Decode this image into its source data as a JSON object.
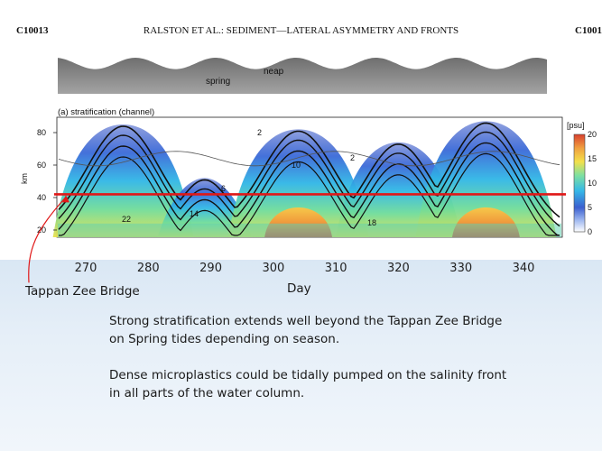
{
  "header": {
    "left": "C10013",
    "center": "RALSTON ET AL.: SEDIMENT—LATERAL ASYMMETRY AND FRONTS",
    "right": "C1001"
  },
  "tide_panel": {
    "spring_label": "spring",
    "neap_label": "neap",
    "fill_color": "#8a8a8a"
  },
  "chart_data": {
    "type": "heatmap",
    "title": "(a) stratification (channel)",
    "xlabel": "Day",
    "ylabel": "km",
    "xlim": [
      264,
      346
    ],
    "ylim": [
      10,
      90
    ],
    "x_ticks": [
      270,
      280,
      290,
      300,
      310,
      320,
      330,
      340
    ],
    "y_ticks": [
      20,
      40,
      60,
      80
    ],
    "colorbar": {
      "unit": "[psu]",
      "ticks": [
        20,
        15,
        10,
        5,
        0
      ],
      "range": [
        0,
        20
      ],
      "colors": [
        "#ffffff",
        "#3b5fcf",
        "#35b8e8",
        "#7fe0a0",
        "#f3e04a",
        "#f0a040",
        "#d9402e"
      ]
    },
    "contour_labels": [
      "2",
      "6",
      "10",
      "14",
      "18",
      "22",
      "2"
    ],
    "stratification_peaks": [
      {
        "day": 276,
        "extent_km": 85
      },
      {
        "day": 289,
        "extent_km": 52
      },
      {
        "day": 304,
        "extent_km": 82
      },
      {
        "day": 320,
        "extent_km": 74
      },
      {
        "day": 334,
        "extent_km": 87
      }
    ],
    "annotation": {
      "label": "Tappan Zee Bridge",
      "y_km": 42,
      "color": "#e01818"
    }
  },
  "captions": {
    "line1a": "Strong stratification extends well beyond the Tappan Zee Bridge",
    "line1b": "on Spring tides depending on season.",
    "line2a": "Dense microplastics could be tidally pumped on the salinity front",
    "line2b": "in all parts of the water column."
  }
}
